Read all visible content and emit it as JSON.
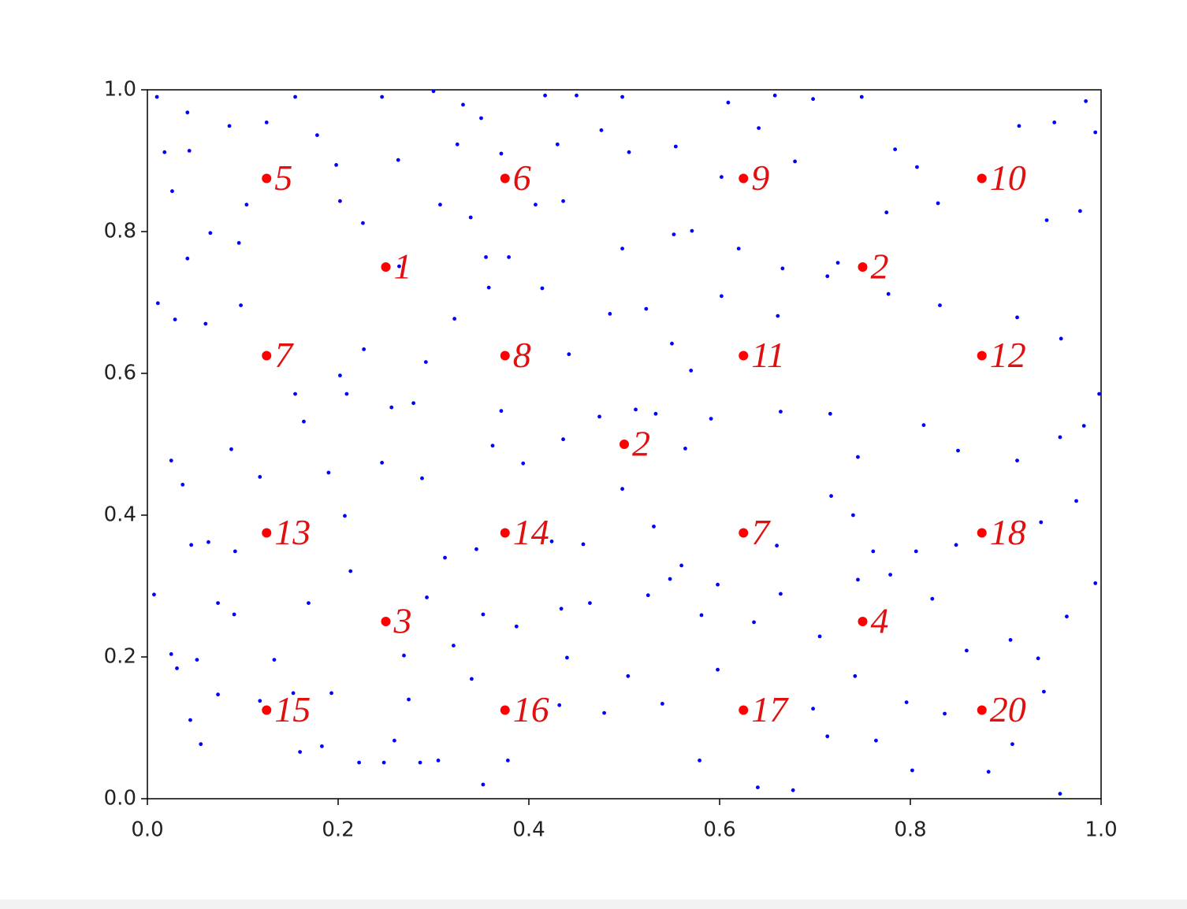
{
  "chart_data": {
    "type": "scatter",
    "xlim": [
      0,
      1
    ],
    "ylim": [
      0,
      1
    ],
    "xticks": [
      {
        "value": 0,
        "label": "0.0"
      },
      0.2,
      0.4,
      0.6,
      0.8,
      {
        "value": 1,
        "label": "1.0"
      }
    ],
    "yticks": [
      {
        "value": 0,
        "label": "0.0"
      },
      0.2,
      0.4,
      0.6,
      0.8,
      {
        "value": 1,
        "label": "1.0"
      }
    ],
    "series": [
      {
        "color": "#0000ff",
        "x": [
          0.01,
          0.042,
          0.155,
          0.246,
          0.3,
          0.331,
          0.35,
          0.417,
          0.45,
          0.498,
          0.609,
          0.658,
          0.698,
          0.749,
          0.984,
          0.018,
          0.044,
          0.086,
          0.125,
          0.178,
          0.198,
          0.263,
          0.307,
          0.325,
          0.371,
          0.43,
          0.476,
          0.505,
          0.554,
          0.602,
          0.641,
          0.679,
          0.784,
          0.807,
          0.914,
          0.951,
          0.994,
          0.026,
          0.042,
          0.066,
          0.096,
          0.104,
          0.202,
          0.226,
          0.264,
          0.339,
          0.355,
          0.407,
          0.436,
          0.498,
          0.552,
          0.571,
          0.62,
          0.666,
          0.724,
          0.775,
          0.829,
          0.943,
          0.978,
          0.011,
          0.029,
          0.061,
          0.098,
          0.155,
          0.202,
          0.227,
          0.292,
          0.322,
          0.358,
          0.379,
          0.414,
          0.442,
          0.485,
          0.523,
          0.55,
          0.57,
          0.602,
          0.661,
          0.713,
          0.777,
          0.831,
          0.912,
          0.958,
          0.998,
          0.025,
          0.037,
          0.088,
          0.118,
          0.164,
          0.209,
          0.256,
          0.279,
          0.362,
          0.371,
          0.394,
          0.436,
          0.474,
          0.512,
          0.533,
          0.564,
          0.591,
          0.664,
          0.716,
          0.745,
          0.814,
          0.85,
          0.912,
          0.957,
          0.982,
          0.046,
          0.064,
          0.092,
          0.19,
          0.207,
          0.246,
          0.288,
          0.312,
          0.345,
          0.424,
          0.457,
          0.498,
          0.531,
          0.56,
          0.598,
          0.66,
          0.717,
          0.74,
          0.761,
          0.806,
          0.848,
          0.937,
          0.974,
          0.007,
          0.025,
          0.052,
          0.074,
          0.133,
          0.169,
          0.213,
          0.269,
          0.293,
          0.321,
          0.352,
          0.387,
          0.434,
          0.464,
          0.525,
          0.548,
          0.581,
          0.636,
          0.664,
          0.705,
          0.745,
          0.779,
          0.823,
          0.859,
          0.905,
          0.934,
          0.964,
          0.994,
          0.045,
          0.074,
          0.118,
          0.16,
          0.183,
          0.222,
          0.248,
          0.286,
          0.352,
          0.378,
          0.432,
          0.479,
          0.54,
          0.579,
          0.64,
          0.677,
          0.713,
          0.764,
          0.802,
          0.836,
          0.882,
          0.907,
          0.957,
          0.031,
          0.091,
          0.153,
          0.193,
          0.274,
          0.34,
          0.44,
          0.504,
          0.598,
          0.698,
          0.742,
          0.796,
          0.94,
          0.305,
          0.259,
          0.056
        ],
        "y": [
          0.99,
          0.968,
          0.99,
          0.99,
          0.998,
          0.979,
          0.96,
          0.992,
          0.992,
          0.99,
          0.982,
          0.992,
          0.987,
          0.99,
          0.984,
          0.912,
          0.914,
          0.949,
          0.954,
          0.936,
          0.894,
          0.901,
          0.838,
          0.923,
          0.91,
          0.923,
          0.943,
          0.912,
          0.92,
          0.877,
          0.946,
          0.899,
          0.916,
          0.891,
          0.949,
          0.954,
          0.94,
          0.857,
          0.762,
          0.798,
          0.784,
          0.838,
          0.843,
          0.812,
          0.751,
          0.82,
          0.764,
          0.838,
          0.843,
          0.776,
          0.796,
          0.801,
          0.776,
          0.748,
          0.756,
          0.827,
          0.84,
          0.816,
          0.829,
          0.699,
          0.676,
          0.67,
          0.696,
          0.571,
          0.597,
          0.634,
          0.616,
          0.677,
          0.721,
          0.764,
          0.72,
          0.627,
          0.684,
          0.691,
          0.642,
          0.604,
          0.709,
          0.681,
          0.737,
          0.712,
          0.696,
          0.679,
          0.649,
          0.571,
          0.477,
          0.443,
          0.493,
          0.454,
          0.532,
          0.571,
          0.552,
          0.558,
          0.498,
          0.547,
          0.473,
          0.507,
          0.539,
          0.549,
          0.543,
          0.494,
          0.536,
          0.546,
          0.543,
          0.482,
          0.527,
          0.491,
          0.477,
          0.51,
          0.526,
          0.358,
          0.362,
          0.349,
          0.46,
          0.399,
          0.474,
          0.452,
          0.34,
          0.352,
          0.363,
          0.359,
          0.437,
          0.384,
          0.329,
          0.302,
          0.357,
          0.427,
          0.4,
          0.349,
          0.349,
          0.358,
          0.39,
          0.42,
          0.288,
          0.204,
          0.196,
          0.276,
          0.196,
          0.276,
          0.321,
          0.202,
          0.284,
          0.216,
          0.26,
          0.243,
          0.268,
          0.276,
          0.287,
          0.31,
          0.259,
          0.249,
          0.289,
          0.229,
          0.309,
          0.316,
          0.282,
          0.209,
          0.224,
          0.198,
          0.257,
          0.304,
          0.111,
          0.147,
          0.138,
          0.066,
          0.074,
          0.051,
          0.051,
          0.051,
          0.02,
          0.054,
          0.132,
          0.121,
          0.134,
          0.054,
          0.016,
          0.012,
          0.088,
          0.082,
          0.04,
          0.12,
          0.038,
          0.077,
          0.007,
          0.184,
          0.26,
          0.149,
          0.149,
          0.14,
          0.169,
          0.199,
          0.173,
          0.182,
          0.127,
          0.173,
          0.136,
          0.151,
          0.054,
          0.082,
          0.077
        ]
      },
      {
        "color": "#ff0000",
        "x": [
          0.125,
          0.375,
          0.625,
          0.875,
          0.25,
          0.75,
          0.125,
          0.375,
          0.625,
          0.875,
          0.5,
          0.125,
          0.375,
          0.625,
          0.875,
          0.25,
          0.75,
          0.125,
          0.375,
          0.625,
          0.875
        ],
        "y": [
          0.875,
          0.875,
          0.875,
          0.875,
          0.75,
          0.75,
          0.625,
          0.625,
          0.625,
          0.625,
          0.5,
          0.375,
          0.375,
          0.375,
          0.375,
          0.25,
          0.25,
          0.125,
          0.125,
          0.125,
          0.125
        ],
        "labels": [
          "5",
          "6",
          "9",
          "10",
          "1",
          "2",
          "7",
          "8",
          "11",
          "12",
          "2",
          "13",
          "14",
          "7",
          "18",
          "3",
          "4",
          "15",
          "16",
          "17",
          "20"
        ]
      }
    ]
  }
}
